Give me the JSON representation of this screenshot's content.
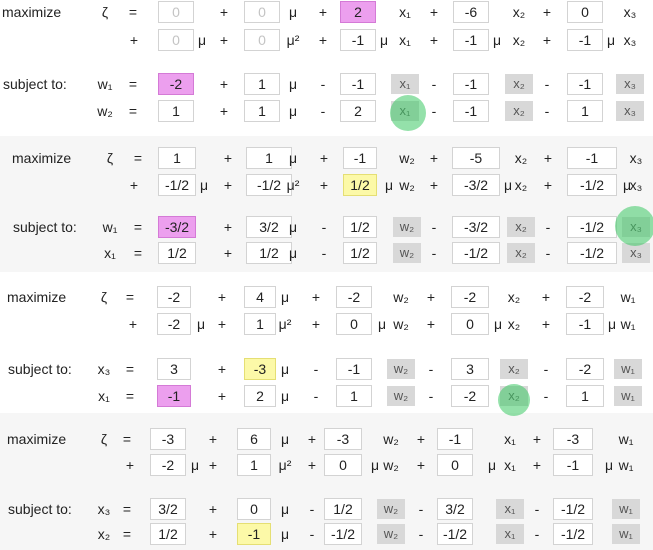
{
  "tableaux": [
    {
      "heading": "maximize",
      "obj_var": "ζ",
      "eq": "=",
      "subject_to": "subject to:",
      "obj_row1": {
        "op1": "+",
        "op2": "+",
        "op3": "+",
        "op4": "+",
        "c0": "0",
        "c1": "0",
        "mu1": "μ",
        "c2": "2",
        "v2": "x₁",
        "c3": "-6",
        "v3": "x₂",
        "c4": "0",
        "v4": "x₃"
      },
      "obj_row2": {
        "op0": "+",
        "op1": "+",
        "op2": "+",
        "op3": "+",
        "op4": "+",
        "c0": "0",
        "mu0": "μ",
        "c1": "0",
        "mu1": "μ²",
        "c2": "-1",
        "mu2": "μ",
        "v2": "x₁",
        "c3": "-1",
        "mu3": "μ",
        "v3": "x₂",
        "c4": "-1",
        "mu4": "μ",
        "v4": "x₃"
      },
      "constraints": [
        {
          "basic": "w₁",
          "eq": "=",
          "op1": "+",
          "mu": "μ",
          "op2": "-",
          "op3": "-",
          "op4": "-",
          "c0": "-2",
          "c1": "1",
          "c2": "-1",
          "v2": "x₁",
          "c3": "-1",
          "v3": "x₂",
          "c4": "-1",
          "v4": "x₃"
        },
        {
          "basic": "w₂",
          "eq": "=",
          "op1": "+",
          "mu": "μ",
          "op2": "-",
          "op3": "-",
          "op4": "-",
          "c0": "1",
          "c1": "1",
          "c2": "2",
          "v2": "x₁",
          "c3": "-1",
          "v3": "x₂",
          "c4": "1",
          "v4": "x₃"
        }
      ]
    },
    {
      "heading": "maximize",
      "obj_var": "ζ",
      "eq": "=",
      "subject_to": "subject to:",
      "obj_row1": {
        "op1": "+",
        "op2": "+",
        "op3": "+",
        "op4": "+",
        "c0": "1",
        "c1": "1",
        "mu1": "μ",
        "c2": "-1",
        "v2": "w₂",
        "c3": "-5",
        "v3": "x₂",
        "c4": "-1",
        "v4": "x₃"
      },
      "obj_row2": {
        "op0": "+",
        "op1": "+",
        "op2": "+",
        "op3": "+",
        "op4": "+",
        "c0": "-1/2",
        "mu0": "μ",
        "c1": "-1/2",
        "mu1": "μ²",
        "c2": "1/2",
        "mu2": "μ",
        "v2": "w₂",
        "c3": "-3/2",
        "mu3": "μ",
        "v3": "x₂",
        "c4": "-1/2",
        "mu4": "μ",
        "v4": "x₃"
      },
      "constraints": [
        {
          "basic": "w₁",
          "eq": "=",
          "op1": "+",
          "mu": "μ",
          "op2": "-",
          "op3": "-",
          "op4": "-",
          "c0": "-3/2",
          "c1": "3/2",
          "c2": "1/2",
          "v2": "w₂",
          "c3": "-3/2",
          "v3": "x₂",
          "c4": "-1/2",
          "v4": "x₃"
        },
        {
          "basic": "x₁",
          "eq": "=",
          "op1": "+",
          "mu": "μ",
          "op2": "-",
          "op3": "-",
          "op4": "-",
          "c0": "1/2",
          "c1": "1/2",
          "c2": "1/2",
          "v2": "w₂",
          "c3": "-1/2",
          "v3": "x₂",
          "c4": "-1/2",
          "v4": "x₃"
        }
      ]
    },
    {
      "heading": "maximize",
      "obj_var": "ζ",
      "eq": "=",
      "subject_to": "subject to:",
      "obj_row1": {
        "op1": "+",
        "op2": "+",
        "op3": "+",
        "op4": "+",
        "c0": "-2",
        "c1": "4",
        "mu1": "μ",
        "c2": "-2",
        "v2": "w₂",
        "c3": "-2",
        "v3": "x₂",
        "c4": "-2",
        "v4": "w₁"
      },
      "obj_row2": {
        "op0": "+",
        "op1": "+",
        "op2": "+",
        "op3": "+",
        "op4": "+",
        "c0": "-2",
        "mu0": "μ",
        "c1": "1",
        "mu1": "μ²",
        "c2": "0",
        "mu2": "μ",
        "v2": "w₂",
        "c3": "0",
        "mu3": "μ",
        "v3": "x₂",
        "c4": "-1",
        "mu4": "μ",
        "v4": "w₁"
      },
      "constraints": [
        {
          "basic": "x₃",
          "eq": "=",
          "op1": "+",
          "mu": "μ",
          "op2": "-",
          "op3": "-",
          "op4": "-",
          "c0": "3",
          "c1": "-3",
          "c2": "-1",
          "v2": "w₂",
          "c3": "3",
          "v3": "x₂",
          "c4": "-2",
          "v4": "w₁"
        },
        {
          "basic": "x₁",
          "eq": "=",
          "op1": "+",
          "mu": "μ",
          "op2": "-",
          "op3": "-",
          "op4": "-",
          "c0": "-1",
          "c1": "2",
          "c2": "1",
          "v2": "w₂",
          "c3": "-2",
          "v3": "x₂",
          "c4": "1",
          "v4": "w₁"
        }
      ]
    },
    {
      "heading": "maximize",
      "obj_var": "ζ",
      "eq": "=",
      "subject_to": "subject to:",
      "obj_row1": {
        "op1": "+",
        "op2": "+",
        "op3": "+",
        "op4": "+",
        "c0": "-3",
        "c1": "6",
        "mu1": "μ",
        "c2": "-3",
        "v2": "w₂",
        "c3": "-1",
        "v3": "x₁",
        "c4": "-3",
        "v4": "w₁"
      },
      "obj_row2": {
        "op0": "+",
        "op1": "+",
        "op2": "+",
        "op3": "+",
        "op4": "+",
        "c0": "-2",
        "mu0": "μ",
        "c1": "1",
        "mu1": "μ²",
        "c2": "0",
        "mu2": "μ",
        "v2": "w₂",
        "c3": "0",
        "mu3": "μ",
        "v3": "x₁",
        "c4": "-1",
        "mu4": "μ",
        "v4": "w₁"
      },
      "constraints": [
        {
          "basic": "x₃",
          "eq": "=",
          "op1": "+",
          "mu": "μ",
          "op2": "-",
          "op3": "-",
          "op4": "-",
          "c0": "3/2",
          "c1": "0",
          "c2": "1/2",
          "v2": "w₂",
          "c3": "3/2",
          "v3": "x₁",
          "c4": "-1/2",
          "v4": "w₁"
        },
        {
          "basic": "x₂",
          "eq": "=",
          "op1": "+",
          "mu": "μ",
          "op2": "-",
          "op3": "-",
          "op4": "-",
          "c0": "1/2",
          "c1": "-1",
          "c2": "-1/2",
          "v2": "w₂",
          "c3": "-1/2",
          "v3": "x₁",
          "c4": "-1/2",
          "v4": "w₁"
        }
      ]
    }
  ],
  "colors": {
    "pivot_pink": "#ec9fee",
    "mu_yellow": "#fcf9a8",
    "entering_green": "#3cc864",
    "variable_chip": "#d8d8d8"
  },
  "highlights": [
    {
      "tableau": 0,
      "pink": [
        "constraints.0.c0"
      ],
      "yellow": [],
      "green_circle": "constraints.1.v2"
    },
    {
      "tableau": 1,
      "pink": [
        "constraints.0.c0"
      ],
      "yellow": [
        "obj_row2.c2"
      ],
      "green_circle": "constraints.0.v4"
    },
    {
      "tableau": 2,
      "pink": [
        "constraints.1.c0"
      ],
      "yellow": [
        "constraints.0.c1"
      ],
      "green_circle": "constraints.1.v3"
    },
    {
      "tableau": 3,
      "pink": [],
      "yellow": [
        "constraints.1.c1"
      ],
      "green_circle": null
    }
  ]
}
